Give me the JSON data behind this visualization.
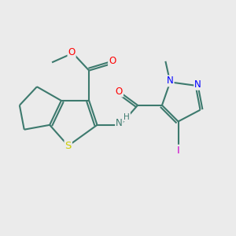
{
  "background_color": "#ebebeb",
  "bond_color": "#3d7a6e",
  "bond_width": 1.5,
  "atom_colors": {
    "O": "#ff0000",
    "S": "#cccc00",
    "N": "#0000ff",
    "N_amide": "#3d7a6e",
    "I": "#cc00cc",
    "H": "#3d7a6e",
    "C": "#3d7a6e"
  },
  "font_size": 8.5,
  "title": ""
}
